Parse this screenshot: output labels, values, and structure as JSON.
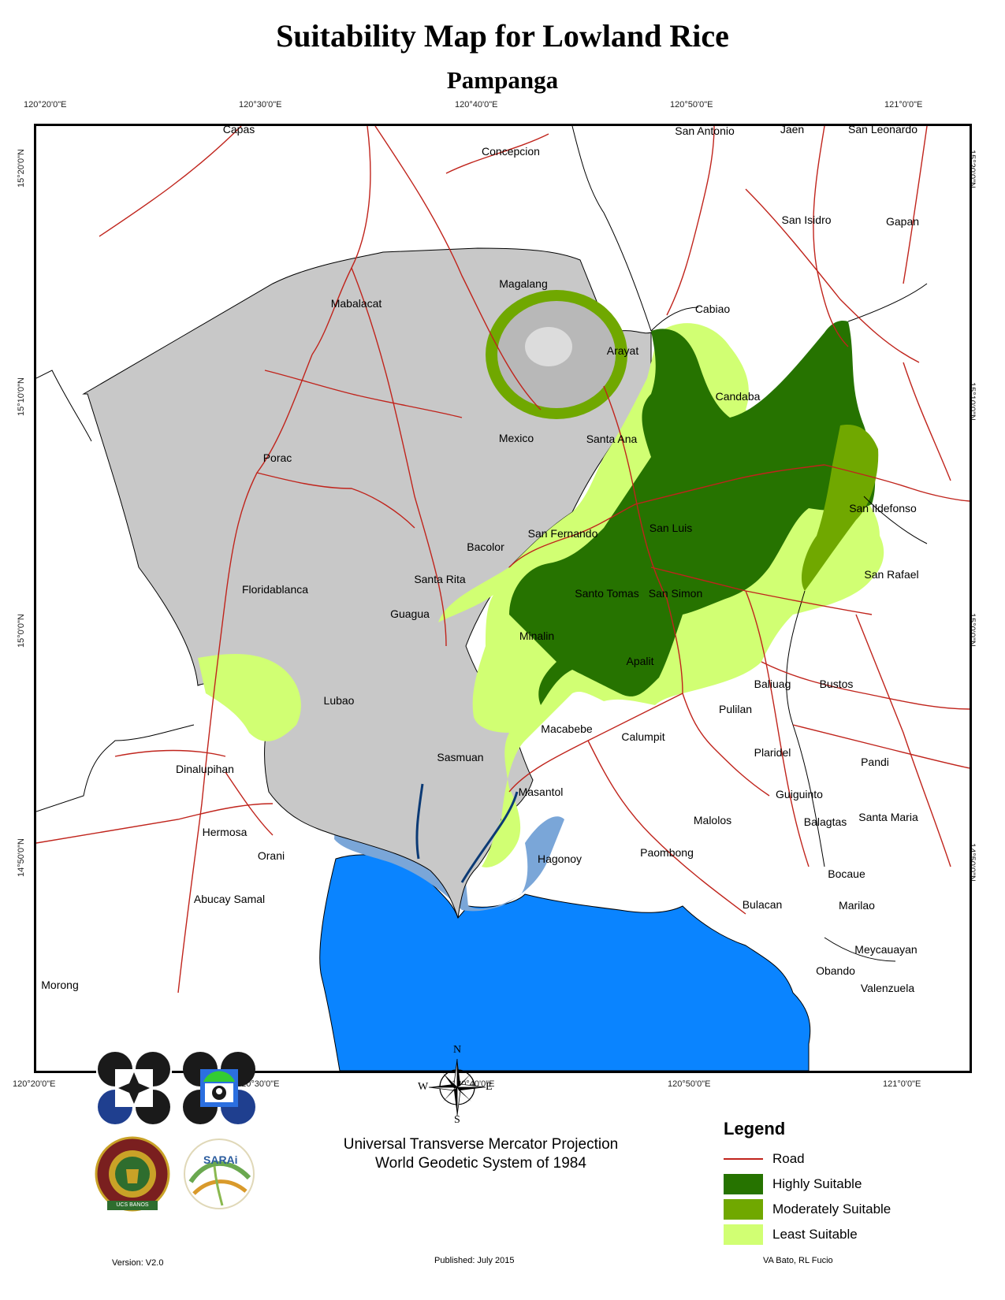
{
  "title": "Suitability Map for Lowland Rice",
  "subtitle": "Pampanga",
  "coords": {
    "top": [
      "120°20'0\"E",
      "120°30'0\"E",
      "120°40'0\"E",
      "120°50'0\"E",
      "121°0'0\"E"
    ],
    "bottom": [
      "120°20'0\"E",
      "120°30'0\"E",
      "120°40'0\"E",
      "120°50'0\"E",
      "121°0'0\"E"
    ],
    "left": [
      "15°20'0\"N",
      "15°10'0\"N",
      "15°0'0\"N",
      "14°50'0\"N"
    ],
    "right": [
      "15°20'0\"N",
      "15°10'0\"N",
      "15°0'0\"N",
      "14°50'0\"N"
    ]
  },
  "places": [
    "Capas",
    "Concepcion",
    "San Antonio",
    "Jaen",
    "San Leonardo",
    "San Isidro",
    "Gapan",
    "Magalang",
    "Mabalacat",
    "Cabiao",
    "Arayat",
    "Candaba",
    "Mexico",
    "Santa Ana",
    "Porac",
    "San Ildefonso",
    "San Fernando",
    "San Luis",
    "Bacolor",
    "San Rafael",
    "Santa Rita",
    "Floridablanca",
    "Santo Tomas",
    "San Simon",
    "Guagua",
    "Minalin",
    "Apalit",
    "Baliuag",
    "Bustos",
    "Pulilan",
    "Lubao",
    "Macabebe",
    "Calumpit",
    "Plaridel",
    "Pandi",
    "Dinalupihan",
    "Sasmuan",
    "Guiguinto",
    "Masantol",
    "Malolos",
    "Balagtas",
    "Santa Maria",
    "Hermosa",
    "Orani",
    "Hagonoy",
    "Paombong",
    "Bocaue",
    "Abucay Samal",
    "Bulacan",
    "Marilao",
    "Meycauayan",
    "Obando",
    "Morong",
    "Valenzuela"
  ],
  "legend": {
    "title": "Legend",
    "items": [
      {
        "label": "Road",
        "color": "#c0241c"
      },
      {
        "label": "Highly Suitable",
        "color": "#267300"
      },
      {
        "label": "Moderately Suitable",
        "color": "#70a800"
      },
      {
        "label": "Least Suitable",
        "color": "#d1ff73"
      }
    ]
  },
  "colors": {
    "unsuitable": "#c8c8c8",
    "water": "#0a84ff",
    "fishpond": "#7aa6d8",
    "road": "#c0241c"
  },
  "compass": {
    "n": "N",
    "s": "S",
    "e": "E",
    "w": "W"
  },
  "projection": {
    "line1": "Universal Transverse Mercator Projection",
    "line2": "World Geodetic System of 1984"
  },
  "footer": {
    "version": "Version: V2.0",
    "published": "Published: July 2015",
    "authors": "VA Bato, RL Fucio"
  },
  "logos": {
    "seal_text": "UCS BANOS",
    "sarai_text": "SARAi"
  }
}
